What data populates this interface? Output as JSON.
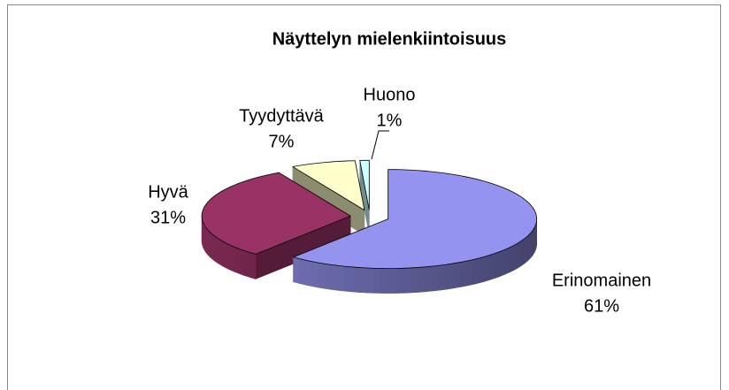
{
  "chart_data": {
    "type": "pie3d",
    "title": "Näyttelyn mielenkiintoisuus",
    "categories": [
      "Erinomainen",
      "Hyvä",
      "Tyydyttävä",
      "Huono"
    ],
    "values": [
      61,
      31,
      7,
      1
    ],
    "value_labels": [
      "61%",
      "31%",
      "7%",
      "1%"
    ],
    "colors": [
      "#9494f0",
      "#993366",
      "#ffffcc",
      "#ccffff"
    ]
  }
}
